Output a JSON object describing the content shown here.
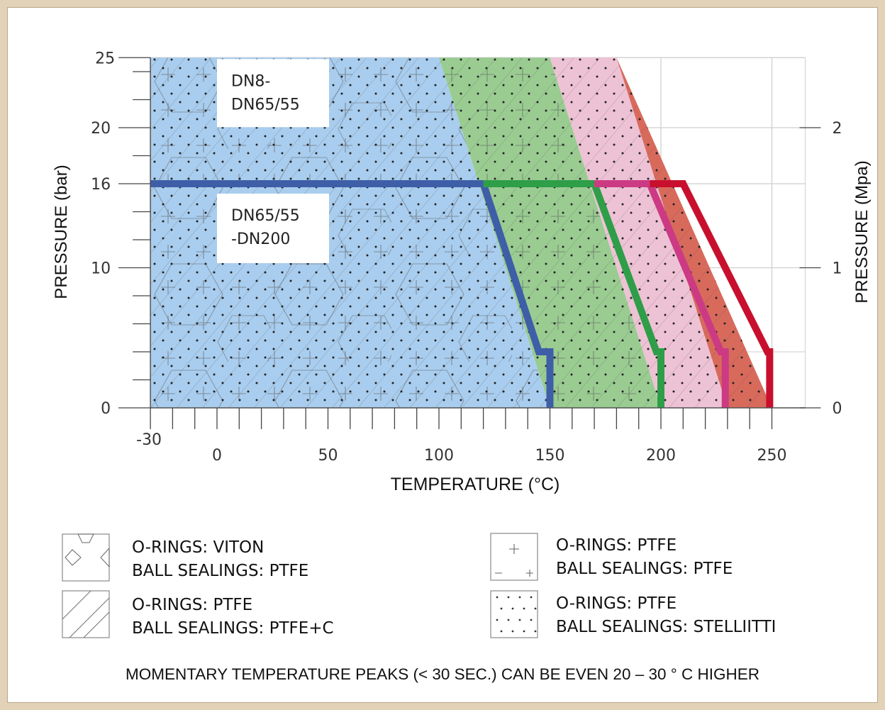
{
  "chart_data": {
    "type": "area",
    "xlabel": "TEMPERATURE (°C)",
    "ylabel_left": "PRESSURE (bar)",
    "ylabel_right": "PRESSURE (Mpa)",
    "xlim": [
      -30,
      265
    ],
    "ylim": [
      0,
      25
    ],
    "x_ticks": [
      -30,
      0,
      50,
      100,
      150,
      200,
      250
    ],
    "y_ticks_left": [
      0,
      10,
      16,
      20,
      25
    ],
    "y_ticks_right": [
      0,
      1,
      2
    ],
    "x_minor_step": 10,
    "y_minor_ticks": [
      2,
      4,
      6,
      8,
      12,
      14,
      18,
      22,
      24
    ],
    "grid": true,
    "region_labels": [
      {
        "text_lines": [
          "DN8-",
          "DN65/55"
        ],
        "pressure_range": [
          16,
          25
        ]
      },
      {
        "text_lines": [
          "DN65/55",
          "-DN200"
        ],
        "pressure_range": [
          0,
          16
        ]
      }
    ],
    "series": [
      {
        "materials": [
          "O-RINGS: VITON",
          "BALL SEALINGS: PTFE"
        ],
        "fill_color": "#a9cdee",
        "line_color": "#3e5ea8",
        "upper_boundary": [
          [
            -30,
            25
          ],
          [
            100,
            25
          ],
          [
            150,
            0
          ]
        ],
        "limit_line_dn200": [
          [
            -30,
            16
          ],
          [
            120,
            16
          ],
          [
            145,
            4
          ],
          [
            150,
            4
          ],
          [
            150,
            0
          ]
        ]
      },
      {
        "materials": [
          "O-RINGS: PTFE",
          "BALL SEALINGS: PTFE"
        ],
        "fill_color": "#9acc92",
        "line_color": "#2e9e48",
        "upper_boundary": [
          [
            100,
            25
          ],
          [
            150,
            25
          ],
          [
            200,
            0
          ]
        ],
        "limit_line_dn200": [
          [
            120,
            16
          ],
          [
            170,
            16
          ],
          [
            198,
            4
          ],
          [
            200,
            4
          ],
          [
            200,
            0
          ]
        ]
      },
      {
        "materials": [
          "O-RINGS: PTFE",
          "BALL SEALINGS: PTFE+C"
        ],
        "fill_color": "#eec2d5",
        "line_color": "#cc3a83",
        "upper_boundary": [
          [
            150,
            25
          ],
          [
            180,
            25
          ],
          [
            230,
            0
          ]
        ],
        "limit_line_dn200": [
          [
            170,
            16
          ],
          [
            195,
            16
          ],
          [
            227,
            4
          ],
          [
            229,
            4
          ],
          [
            229,
            0
          ]
        ]
      },
      {
        "materials": [
          "O-RINGS: PTFE",
          "BALL SEALINGS: STELLIITTI"
        ],
        "fill_color": "#d86a5c",
        "line_color": "#c8102e",
        "upper_boundary": [
          [
            180,
            25
          ],
          [
            250,
            0
          ]
        ],
        "limit_line_dn200": [
          [
            195,
            16
          ],
          [
            210,
            16
          ],
          [
            248,
            4
          ],
          [
            249,
            4
          ],
          [
            249,
            0
          ]
        ]
      }
    ],
    "legend": [
      {
        "line1": "O-RINGS: VITON",
        "line2": "BALL SEALINGS: PTFE",
        "pattern": "hexagon"
      },
      {
        "line1": "O-RINGS: PTFE",
        "line2": "BALL SEALINGS: PTFE",
        "pattern": "cross"
      },
      {
        "line1": "O-RINGS: PTFE",
        "line2": "BALL SEALINGS: PTFE+C",
        "pattern": "diagonal-hatch"
      },
      {
        "line1": "O-RINGS: PTFE",
        "line2": "BALL SEALINGS: STELLIITTI",
        "pattern": "dots"
      }
    ],
    "legend_placement": "bottom, two columns"
  },
  "footnote": "MOMENTARY TEMPERATURE PEAKS (< 30 SEC.) CAN BE EVEN 20 – 30 ° C HIGHER"
}
